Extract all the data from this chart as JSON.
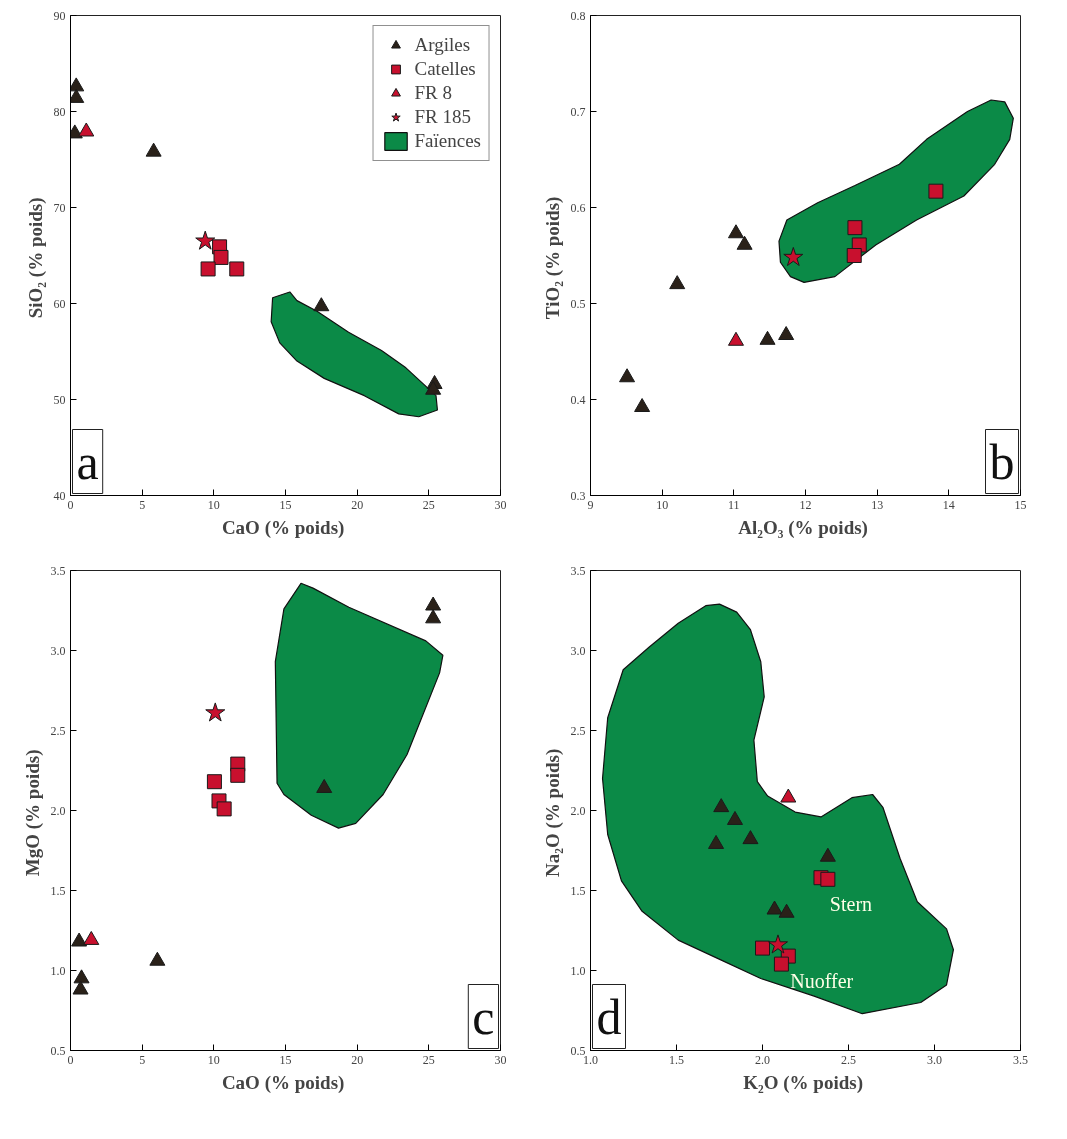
{
  "chart_data": [
    {
      "type": "scatter",
      "xlabel": "CaO  (% poids)",
      "ylabel": "SiO₂  (% poids)",
      "xlim": [
        0,
        30
      ],
      "ylim": [
        40,
        90
      ],
      "xticks": [
        0,
        5,
        10,
        15,
        20,
        25,
        30
      ],
      "yticks": [
        40,
        50,
        60,
        70,
        80,
        90
      ],
      "grid": false,
      "legend": "top right",
      "annotations": [
        "a"
      ],
      "series": [
        {
          "name": "Faïences",
          "type": "area",
          "color": "#0b8a47",
          "x": [
            14.1,
            15.3,
            15.8,
            17.2,
            19.4,
            21.7,
            23.4,
            25.5,
            25.6,
            24.3,
            22.9,
            20.5,
            17.7,
            15.8,
            14.6,
            14.0
          ],
          "values": [
            60.6,
            61.2,
            60.3,
            59.2,
            57.0,
            55.1,
            53.3,
            50.4,
            48.9,
            48.2,
            48.5,
            50.4,
            52.2,
            54.0,
            55.9,
            58.1
          ]
        },
        {
          "name": "Argiles",
          "color": "#2a2119",
          "marker": "triangle",
          "x": [
            0.4,
            0.4,
            0.3,
            5.8,
            17.5,
            25.4,
            25.3
          ],
          "values": [
            82.6,
            81.4,
            77.7,
            75.8,
            59.7,
            51.6,
            51.0
          ]
        },
        {
          "name": "Catelles",
          "color": "#c8102e",
          "marker": "square",
          "x": [
            10.4,
            10.5,
            9.6,
            11.6
          ],
          "values": [
            65.9,
            64.8,
            63.6,
            63.6
          ]
        },
        {
          "name": "FR 8",
          "color": "#c8102e",
          "marker": "triangle",
          "x": [
            1.1
          ],
          "values": [
            77.9
          ]
        },
        {
          "name": "FR 185",
          "color": "#c8102e",
          "marker": "star",
          "x": [
            9.4
          ],
          "values": [
            66.5
          ]
        }
      ]
    },
    {
      "type": "scatter",
      "xlabel": "Al₂O₃  (% poids)",
      "ylabel": "TiO₂  (% poids)",
      "xlim": [
        9,
        15
      ],
      "ylim": [
        0.3,
        0.8
      ],
      "xticks": [
        9,
        10,
        11,
        12,
        13,
        14,
        15
      ],
      "yticks": [
        0.3,
        0.4,
        0.5,
        0.6,
        0.7,
        0.8
      ],
      "grid": false,
      "annotations": [
        "b"
      ],
      "series": [
        {
          "type": "area",
          "color": "#0b8a47",
          "x": [
            11.74,
            12.17,
            12.69,
            13.31,
            13.69,
            14.26,
            14.59,
            14.78,
            14.9,
            14.85,
            14.64,
            14.21,
            13.55,
            12.98,
            12.41,
            11.98,
            11.79,
            11.65,
            11.63
          ],
          "values": [
            0.587,
            0.605,
            0.623,
            0.645,
            0.671,
            0.7,
            0.712,
            0.71,
            0.693,
            0.671,
            0.645,
            0.612,
            0.587,
            0.561,
            0.528,
            0.522,
            0.528,
            0.543,
            0.565
          ]
        },
        {
          "color": "#2a2119",
          "marker": "triangle",
          "x": [
            9.51,
            9.72,
            10.21,
            11.03,
            11.15,
            11.47,
            11.73
          ],
          "values": [
            0.423,
            0.392,
            0.52,
            0.573,
            0.561,
            0.462,
            0.467
          ]
        },
        {
          "color": "#c8102e",
          "marker": "square",
          "x": [
            12.69,
            12.75,
            12.68,
            13.82
          ],
          "values": [
            0.579,
            0.561,
            0.55,
            0.617
          ]
        },
        {
          "color": "#c8102e",
          "marker": "triangle",
          "x": [
            11.03
          ],
          "values": [
            0.461
          ]
        },
        {
          "color": "#c8102e",
          "marker": "star",
          "x": [
            11.83
          ],
          "values": [
            0.548
          ]
        }
      ]
    },
    {
      "type": "scatter",
      "xlabel": "CaO  (% poids)",
      "ylabel": "MgO  (% poids)",
      "xlim": [
        0,
        30
      ],
      "ylim": [
        0.5,
        3.5
      ],
      "xticks": [
        0,
        5,
        10,
        15,
        20,
        25,
        30
      ],
      "yticks": [
        {
          "value": 0.5,
          "label": "0.5"
        },
        {
          "value": 1,
          "label": "1.0"
        },
        {
          "value": 1.5,
          "label": "1.5"
        },
        {
          "value": 2,
          "label": "2.0"
        },
        {
          "value": 2.5,
          "label": "2.5"
        },
        {
          "value": 3,
          "label": "3.0"
        },
        {
          "value": 3.5,
          "label": "3.5"
        }
      ],
      "grid": false,
      "annotations": [
        "c"
      ],
      "series": [
        {
          "type": "area",
          "color": "#0b8a47",
          "x": [
            14.41,
            14.29,
            14.89,
            16.08,
            16.92,
            19.42,
            24.79,
            25.98,
            25.75,
            23.48,
            21.81,
            19.9,
            18.7,
            16.8,
            14.89
          ],
          "values": [
            2.17,
            2.93,
            3.26,
            3.42,
            3.39,
            3.27,
            3.06,
            2.97,
            2.86,
            2.35,
            2.1,
            1.92,
            1.89,
            1.97,
            2.1
          ]
        },
        {
          "color": "#2a2119",
          "marker": "triangle",
          "x": [
            25.3,
            25.3,
            17.7,
            0.6,
            0.77,
            0.7,
            6.06
          ],
          "values": [
            3.28,
            3.2,
            2.14,
            1.18,
            0.95,
            0.88,
            1.06
          ]
        },
        {
          "color": "#c8102e",
          "marker": "square",
          "x": [
            11.67,
            11.67,
            10.04,
            10.36,
            10.72
          ],
          "values": [
            2.29,
            2.22,
            2.18,
            2.06,
            2.01
          ]
        },
        {
          "color": "#c8102e",
          "marker": "triangle",
          "x": [
            1.45
          ],
          "values": [
            1.19
          ]
        },
        {
          "color": "#c8102e",
          "marker": "star",
          "x": [
            10.1
          ],
          "values": [
            2.61
          ]
        }
      ]
    },
    {
      "type": "scatter",
      "xlabel": "K₂O  (% poids)",
      "ylabel": "Na₂O  (% poids)",
      "xlim": [
        1,
        3.5
      ],
      "ylim": [
        0.5,
        3.5
      ],
      "xticks": [
        {
          "value": 1,
          "label": "1.0"
        },
        {
          "value": 1.5,
          "label": "1.5"
        },
        {
          "value": 2,
          "label": "2.0"
        },
        {
          "value": 2.5,
          "label": "2.5"
        },
        {
          "value": 3,
          "label": "3.0"
        },
        {
          "value": 3.5,
          "label": "3.5"
        }
      ],
      "yticks": [
        {
          "value": 0.5,
          "label": "0.5"
        },
        {
          "value": 1,
          "label": "1.0"
        },
        {
          "value": 1.5,
          "label": "1.5"
        },
        {
          "value": 2,
          "label": "2.0"
        },
        {
          "value": 2.5,
          "label": "2.5"
        },
        {
          "value": 3,
          "label": "3.0"
        },
        {
          "value": 3.5,
          "label": "3.5"
        }
      ],
      "grid": false,
      "annotations": [
        "d",
        {
          "text": "Stern",
          "x": 2.38,
          "y": 1.57
        },
        {
          "text": "Nuoffer",
          "x": 2.15,
          "y": 1.09
        }
      ],
      "series": [
        {
          "type": "area",
          "color": "#0b8a47",
          "x": [
            1.19,
            1.34,
            1.51,
            1.67,
            1.75,
            1.85,
            1.93,
            1.99,
            2.01,
            1.95,
            1.97,
            2.03,
            2.19,
            2.34,
            2.52,
            2.64,
            2.7,
            2.8,
            2.9,
            3.07,
            3.11,
            3.07,
            2.92,
            2.58,
            2.3,
            1.99,
            1.77,
            1.51,
            1.3,
            1.18,
            1.1,
            1.07,
            1.1
          ],
          "values": [
            2.88,
            3.02,
            3.17,
            3.28,
            3.29,
            3.24,
            3.13,
            2.93,
            2.71,
            2.44,
            2.18,
            2.09,
            1.99,
            1.96,
            2.08,
            2.1,
            2.02,
            1.7,
            1.43,
            1.26,
            1.13,
            0.91,
            0.8,
            0.73,
            0.84,
            0.95,
            1.06,
            1.19,
            1.37,
            1.56,
            1.85,
            2.2,
            2.58
          ]
        },
        {
          "color": "#2a2119",
          "marker": "triangle",
          "x": [
            1.76,
            1.84,
            1.73,
            1.93,
            2.38,
            2.07,
            2.14
          ],
          "values": [
            2.02,
            1.94,
            1.79,
            1.82,
            1.71,
            1.38,
            1.36
          ]
        },
        {
          "color": "#c8102e",
          "marker": "square",
          "x": [
            2.34,
            2.38,
            2.0,
            2.15,
            2.11
          ],
          "values": [
            1.58,
            1.57,
            1.14,
            1.09,
            1.04
          ]
        },
        {
          "color": "#c8102e",
          "marker": "triangle",
          "x": [
            2.15
          ],
          "values": [
            2.08
          ]
        },
        {
          "color": "#c8102e",
          "marker": "star",
          "x": [
            2.09
          ],
          "values": [
            1.16
          ]
        }
      ]
    }
  ]
}
